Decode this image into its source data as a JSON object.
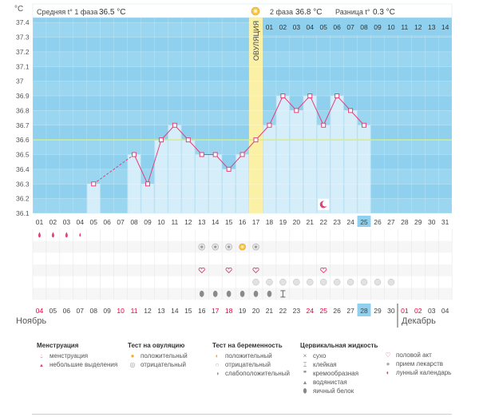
{
  "header": {
    "phase1_label": "Средняя t° 1 фаза",
    "phase1_value": "36.5 °C",
    "phase2_label": "2 фаза",
    "phase2_value": "36.8 °C",
    "diff_label": "Разница t°",
    "diff_value": "0.3 °C"
  },
  "chart_data": {
    "type": "bar",
    "title": "",
    "ylabel": "°C",
    "ylim": [
      36.1,
      37.4
    ],
    "yticks": [
      "36.1",
      "36.2",
      "36.3",
      "36.4",
      "36.5",
      "36.6",
      "36.7",
      "36.8",
      "36.9",
      "37",
      "37.1",
      "37.2",
      "37.3",
      "37.4"
    ],
    "cycle_days": [
      "01",
      "02",
      "03",
      "04",
      "05",
      "06",
      "07",
      "08",
      "09",
      "10",
      "11",
      "12",
      "13",
      "14",
      "15",
      "16",
      "17",
      "18",
      "19",
      "20",
      "21",
      "22",
      "23",
      "24",
      "25",
      "26",
      "27",
      "28",
      "29",
      "30",
      "31"
    ],
    "values": [
      null,
      null,
      null,
      null,
      36.3,
      null,
      null,
      36.5,
      36.3,
      36.6,
      36.7,
      36.6,
      36.5,
      36.5,
      36.4,
      36.5,
      36.6,
      36.7,
      36.9,
      36.8,
      36.9,
      36.7,
      36.9,
      36.8,
      36.7,
      null,
      null,
      null,
      null,
      null,
      null
    ],
    "coverline": 36.6,
    "ovulation_day": 17,
    "ovulation_label": "ОВУЛЯЦИЯ",
    "phase2_days": [
      "01",
      "02",
      "03",
      "04",
      "05",
      "06",
      "07",
      "08",
      "09",
      "10",
      "11",
      "12",
      "13",
      "14"
    ],
    "current_day": 25
  },
  "calendar": {
    "dates": [
      "04",
      "05",
      "06",
      "07",
      "08",
      "09",
      "10",
      "11",
      "12",
      "13",
      "14",
      "15",
      "16",
      "17",
      "18",
      "19",
      "20",
      "21",
      "22",
      "23",
      "24",
      "25",
      "26",
      "27",
      "28",
      "29",
      "30",
      "01",
      "02",
      "03",
      "04"
    ],
    "red_indices": [
      0,
      6,
      7,
      13,
      14,
      20,
      21,
      27,
      28
    ],
    "month_left": "Ноябрь",
    "month_right": "Декабрь"
  },
  "legend": {
    "menstr_title": "Менструация",
    "menstr_items": [
      "менструация",
      "небольшие выделения"
    ],
    "ovul_title": "Тест на овуляцию",
    "ovul_items": [
      "положительный",
      "отрицательный"
    ],
    "preg_title": "Тест на беременность",
    "preg_items": [
      "положительный",
      "отрицательный",
      "слабоположительный"
    ],
    "cerv_title": "Цервикальная жидкость",
    "cerv_items": [
      "сухо",
      "клейкая",
      "кремообразная",
      "водянистая",
      "яичный белок"
    ],
    "other_items": [
      "половой акт",
      "прием лекарств",
      "лунный календарь"
    ]
  },
  "colors": {
    "sky": "#8fd0ee",
    "bar": "#d6eefa",
    "ovulation": "#fbf1a6",
    "line": "#e0417a",
    "coverline": "#d7ef7a",
    "highlight": "#8fd0ee",
    "red_date": "#e0003c"
  }
}
